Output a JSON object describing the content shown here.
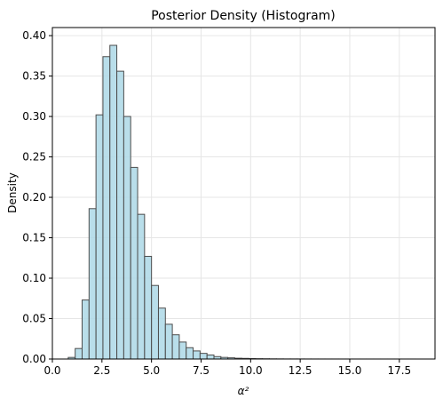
{
  "chart_data": {
    "type": "bar",
    "title": "Posterior Density (Histogram)",
    "xlabel": "α²",
    "ylabel": "Density",
    "xlim": [
      0,
      19.3
    ],
    "ylim": [
      0,
      0.41
    ],
    "grid": true,
    "legend": "none",
    "colors": {
      "bar_fill": "#add8e6",
      "bar_edge": "#4d4d4d",
      "grid": "#e6e6e6",
      "axis": "#000000"
    },
    "x_ticks": [
      0.0,
      2.5,
      5.0,
      7.5,
      10.0,
      12.5,
      15.0,
      17.5
    ],
    "x_tick_labels": [
      "0.0",
      "2.5",
      "5.0",
      "7.5",
      "10.0",
      "12.5",
      "15.0",
      "17.5"
    ],
    "y_ticks": [
      0.0,
      0.05,
      0.1,
      0.15,
      0.2,
      0.25,
      0.3,
      0.35,
      0.4
    ],
    "y_tick_labels": [
      "0.00",
      "0.05",
      "0.10",
      "0.15",
      "0.20",
      "0.25",
      "0.30",
      "0.35",
      "0.40"
    ],
    "bin_start": 0.8,
    "bin_width": 0.35,
    "values": [
      0.002,
      0.013,
      0.073,
      0.186,
      0.302,
      0.374,
      0.388,
      0.356,
      0.3,
      0.237,
      0.179,
      0.127,
      0.091,
      0.063,
      0.043,
      0.03,
      0.021,
      0.014,
      0.01,
      0.007,
      0.005,
      0.003,
      0.002,
      0.0015,
      0.001,
      0.0008,
      0.0006,
      0.0004,
      0.0003,
      0.0002,
      0.00015,
      0.0001,
      0.0001,
      8e-05,
      6e-05,
      5e-05,
      4e-05,
      3e-05,
      3e-05,
      2e-05,
      2e-05,
      2e-05,
      1e-05,
      1e-05,
      1e-05,
      1e-05,
      1e-05,
      1e-05,
      1e-05,
      1e-05
    ]
  }
}
